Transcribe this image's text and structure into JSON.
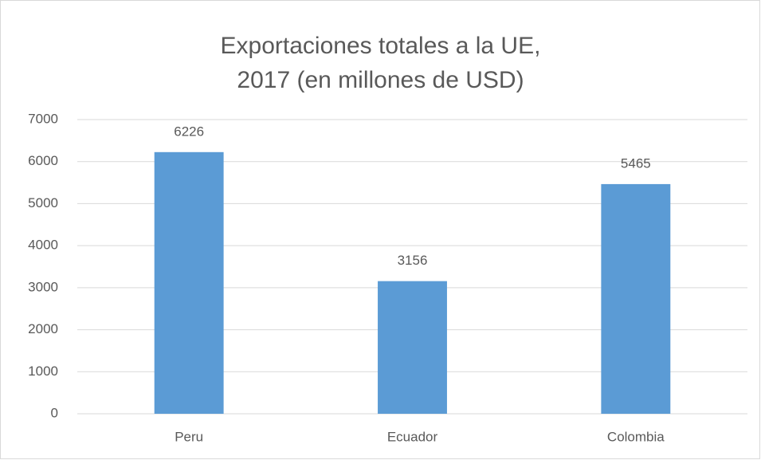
{
  "chart_data": {
    "type": "bar",
    "title": "Exportaciones totales a la UE, 2017 (en millones de USD)",
    "categories": [
      "Peru",
      "Ecuador",
      "Colombia"
    ],
    "values": [
      6226,
      3156,
      5465
    ],
    "color": "#5b9bd5",
    "ylim": [
      0,
      7000
    ],
    "yticks": [
      0,
      1000,
      2000,
      3000,
      4000,
      5000,
      6000,
      7000
    ],
    "grid": true,
    "data_labels": true
  }
}
